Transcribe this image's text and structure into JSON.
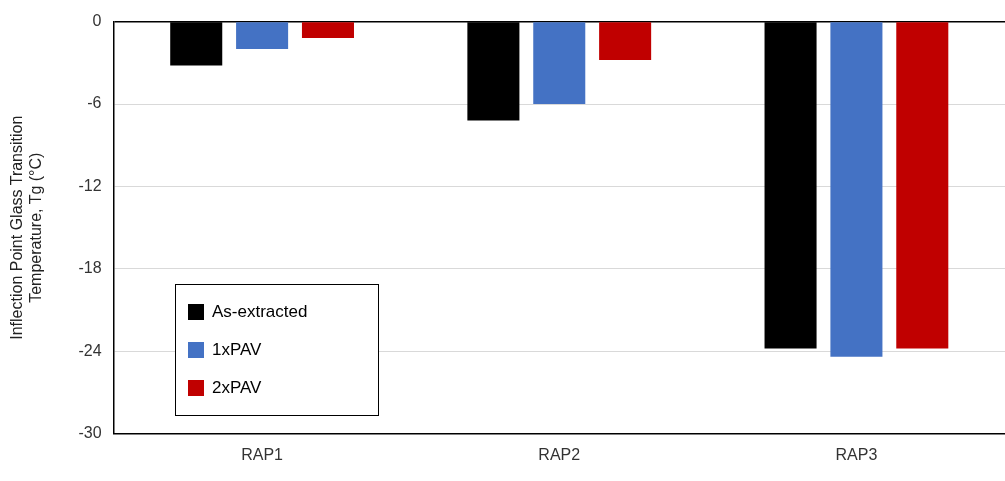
{
  "chart_data": {
    "type": "bar",
    "ylabel": "Inflection Point Glass Transition Temperature, Tg (°C)",
    "categories": [
      "RAP1",
      "RAP2",
      "RAP3"
    ],
    "series": [
      {
        "name": "As-extracted",
        "color": "#000000",
        "values": [
          -3.2,
          -7.2,
          -23.8
        ]
      },
      {
        "name": "1xPAV",
        "color": "#4472c4",
        "values": [
          -2.0,
          -6.0,
          -24.4
        ]
      },
      {
        "name": "2xPAV",
        "color": "#c00000",
        "values": [
          -1.2,
          -2.8,
          -23.8
        ]
      }
    ],
    "ylim": [
      -30,
      0
    ],
    "yticks": [
      -30,
      -24,
      -18,
      -12,
      -6,
      0
    ],
    "grid": "y",
    "legend": "bottom left"
  }
}
